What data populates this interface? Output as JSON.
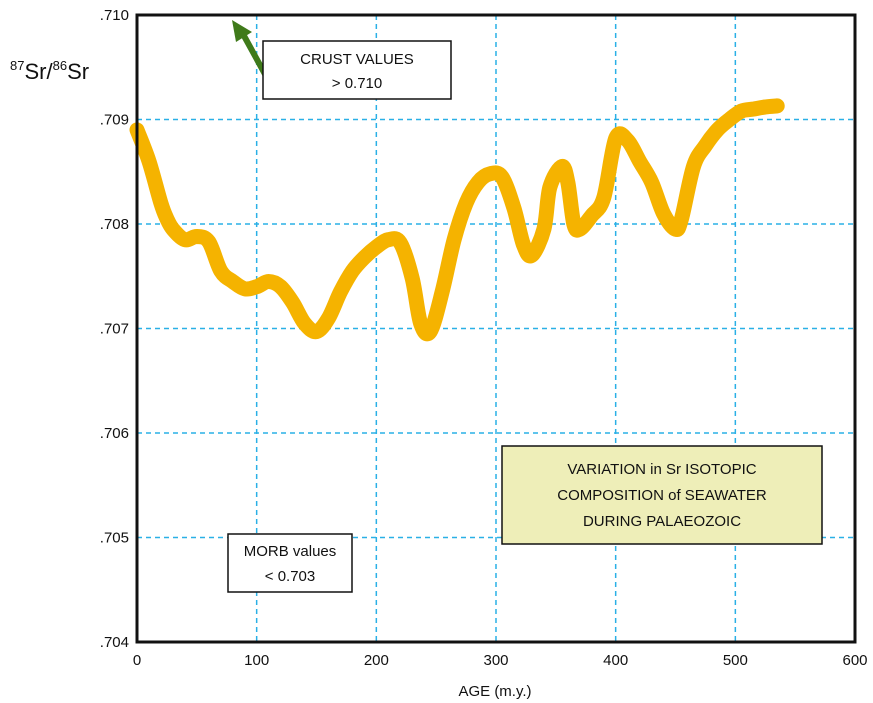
{
  "chart_data": {
    "type": "line",
    "ylabel": {
      "sup1": "87",
      "base1": "Sr/",
      "sup2": "86",
      "base2": "Sr"
    },
    "xlabel": "AGE (m.y.)",
    "xlim": [
      0,
      600
    ],
    "ylim": [
      0.704,
      0.71
    ],
    "x_ticks": [
      "0",
      "100",
      "200",
      "300",
      "400",
      "500",
      "600"
    ],
    "y_ticks": [
      ".704",
      ".705",
      ".706",
      ".707",
      ".708",
      ".709",
      ".710"
    ],
    "grid": true,
    "series": [
      {
        "color": "#f5b300",
        "points": [
          [
            0,
            0.7089
          ],
          [
            10,
            0.7086
          ],
          [
            20,
            0.7082
          ],
          [
            25,
            0.70805
          ],
          [
            30,
            0.70795
          ],
          [
            40,
            0.70785
          ],
          [
            50,
            0.70788
          ],
          [
            60,
            0.70783
          ],
          [
            70,
            0.70755
          ],
          [
            80,
            0.70745
          ],
          [
            90,
            0.70738
          ],
          [
            100,
            0.7074
          ],
          [
            110,
            0.70745
          ],
          [
            120,
            0.7074
          ],
          [
            130,
            0.70725
          ],
          [
            140,
            0.70705
          ],
          [
            150,
            0.70697
          ],
          [
            160,
            0.7071
          ],
          [
            170,
            0.70735
          ],
          [
            180,
            0.70755
          ],
          [
            190,
            0.70768
          ],
          [
            200,
            0.70778
          ],
          [
            210,
            0.70785
          ],
          [
            220,
            0.70782
          ],
          [
            230,
            0.70748
          ],
          [
            237,
            0.70705
          ],
          [
            245,
            0.70697
          ],
          [
            255,
            0.70735
          ],
          [
            265,
            0.70785
          ],
          [
            275,
            0.7082
          ],
          [
            285,
            0.7084
          ],
          [
            295,
            0.70848
          ],
          [
            305,
            0.70845
          ],
          [
            315,
            0.70815
          ],
          [
            323,
            0.7078
          ],
          [
            330,
            0.7077
          ],
          [
            340,
            0.70795
          ],
          [
            345,
            0.70835
          ],
          [
            355,
            0.70855
          ],
          [
            360,
            0.7084
          ],
          [
            365,
            0.708
          ],
          [
            370,
            0.70795
          ],
          [
            380,
            0.70808
          ],
          [
            390,
            0.70825
          ],
          [
            400,
            0.70882
          ],
          [
            410,
            0.7088
          ],
          [
            420,
            0.7086
          ],
          [
            430,
            0.7084
          ],
          [
            440,
            0.7081
          ],
          [
            450,
            0.70795
          ],
          [
            455,
            0.70805
          ],
          [
            465,
            0.70855
          ],
          [
            475,
            0.70875
          ],
          [
            485,
            0.7089
          ],
          [
            495,
            0.709
          ],
          [
            505,
            0.70908
          ],
          [
            515,
            0.7091
          ],
          [
            525,
            0.70912
          ],
          [
            535,
            0.70913
          ]
        ]
      }
    ]
  },
  "annotations": {
    "crust": {
      "line1": "CRUST VALUES",
      "line2": "> 0.710",
      "arrow_color": "#3f7a1a"
    },
    "morb": {
      "line1": "MORB values",
      "line2": "< 0.703"
    },
    "variation": {
      "line1": "VARIATION in Sr ISOTOPIC",
      "line2": "COMPOSITION of SEAWATER",
      "line3": "DURING PALAEOZOIC",
      "bg_color": "#eeeeb8"
    }
  },
  "colors": {
    "grid": "#2ab0e6",
    "frame": "#111111"
  }
}
